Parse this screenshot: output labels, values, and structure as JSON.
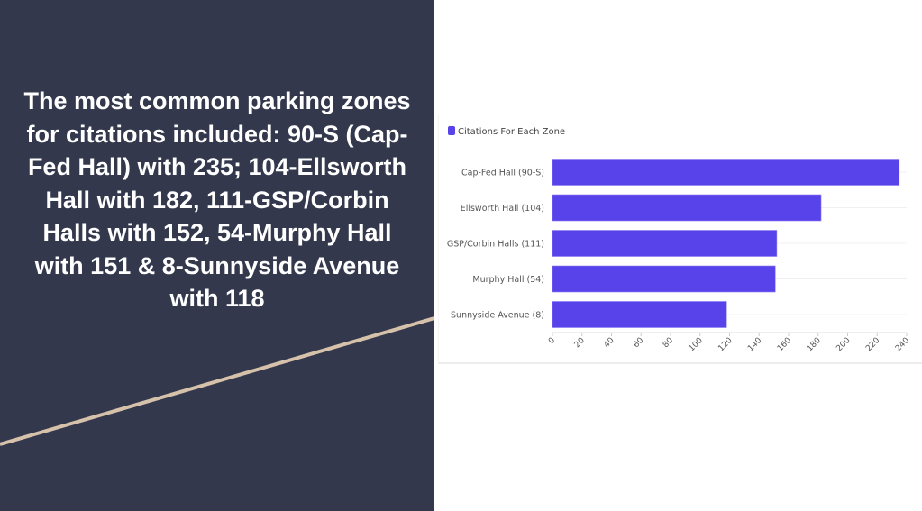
{
  "headline": "The most common parking zones for citations included: 90-S (Cap-Fed Hall) with 235; 104-Ellsworth Hall with 182, 111-GSP/Corbin Halls with 152, 54-Murphy Hall with 151 & 8-Sunnyside Avenue with 118",
  "colors": {
    "panel": "#33384c",
    "accent_line": "#d6c1aa",
    "bar": "#5842e9"
  },
  "chart_data": {
    "type": "bar",
    "orientation": "horizontal",
    "categories": [
      "Cap-Fed Hall (90-S)",
      "Ellsworth Hall (104)",
      "GSP/Corbin Halls (111)",
      "Murphy Hall (54)",
      "Sunnyside Avenue (8)"
    ],
    "series": [
      {
        "name": "Citations For Each Zone",
        "values": [
          235,
          182,
          152,
          151,
          118
        ]
      }
    ],
    "xlim": [
      0,
      240
    ],
    "xticks": [
      0,
      20,
      40,
      60,
      80,
      100,
      120,
      140,
      160,
      180,
      200,
      220,
      240
    ],
    "legend": "top-left",
    "grid": true
  }
}
